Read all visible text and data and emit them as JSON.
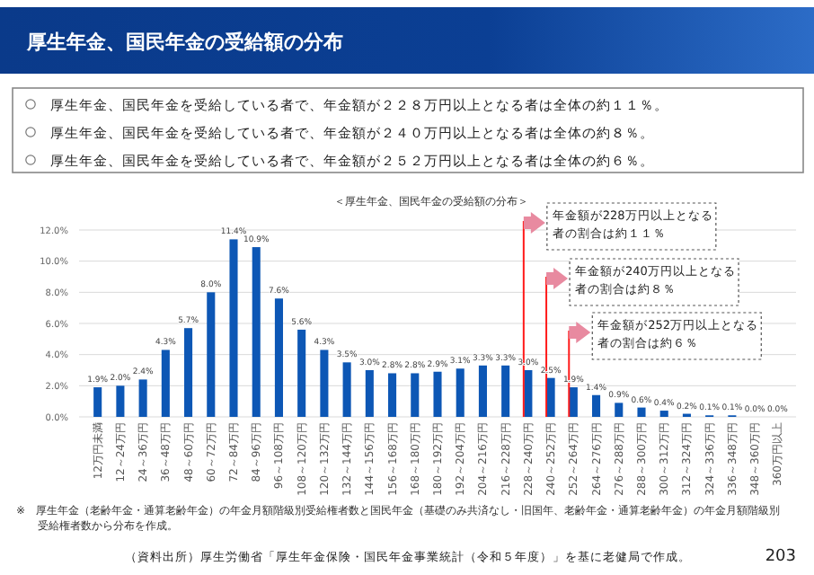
{
  "chart_data": {
    "type": "bar",
    "title": "厚生年金、国民年金の受給額の分布",
    "subtitle": "＜厚生年金、国民年金の受給額の分布＞",
    "categories": [
      "12万円未満",
      "12～24万円",
      "24～36万円",
      "36～48万円",
      "48～60万円",
      "60～72万円",
      "72～84万円",
      "84～96万円",
      "96～108万円",
      "108～120万円",
      "120～132万円",
      "132～144万円",
      "144～156万円",
      "156～168万円",
      "168～180万円",
      "180～192万円",
      "192～204万円",
      "204～216万円",
      "216～228万円",
      "228～240万円",
      "240～252万円",
      "252～264万円",
      "264～276万円",
      "276～288万円",
      "288～300万円",
      "300～312万円",
      "312～324万円",
      "324～336万円",
      "336～348万円",
      "348～360万円",
      "360万円以上"
    ],
    "values": [
      1.9,
      2.0,
      2.4,
      4.3,
      5.7,
      8.0,
      11.4,
      10.9,
      7.6,
      5.6,
      4.3,
      3.5,
      3.0,
      2.8,
      2.8,
      2.9,
      3.1,
      3.3,
      3.3,
      3.0,
      2.5,
      1.9,
      1.4,
      0.9,
      0.6,
      0.4,
      0.2,
      0.1,
      0.1,
      0.0,
      0.0
    ],
    "value_labels": [
      "1.9%",
      "2.0%",
      "2.4%",
      "4.3%",
      "5.7%",
      "8.0%",
      "11.4%",
      "10.9%",
      "7.6%",
      "5.6%",
      "4.3%",
      "3.5%",
      "3.0%",
      "2.8%",
      "2.8%",
      "2.9%",
      "3.1%",
      "3.3%",
      "3.3%",
      "3.0%",
      "2.5%",
      "1.9%",
      "1.4%",
      "0.9%",
      "0.6%",
      "0.4%",
      "0.2%",
      "0.1%",
      "0.1%",
      "0.0%",
      "0.0%"
    ],
    "color": "#0d57b5",
    "ylim": [
      0,
      12
    ],
    "yticks": [
      {
        "value": 0,
        "label": "0.0%"
      },
      {
        "value": 2,
        "label": "2.0%"
      },
      {
        "value": 4,
        "label": "4.0%"
      },
      {
        "value": 6,
        "label": "6.0%"
      },
      {
        "value": 8,
        "label": "8.0%"
      },
      {
        "value": 10,
        "label": "10.0%"
      },
      {
        "value": 12,
        "label": "12.0%"
      }
    ],
    "grid": "y",
    "ref_lines": [
      {
        "axis": "x",
        "value": "228～240万円",
        "label": "年金額が228万円以上となる者の割合は約１１％",
        "color": "#ff1a1a"
      },
      {
        "axis": "x",
        "value": "240～252万円",
        "label": "年金額が240万円以上となる者の割合は約８％",
        "color": "#ff1a1a"
      },
      {
        "axis": "x",
        "value": "252～264万円",
        "label": "年金額が252万円以上となる者の割合は約６％",
        "color": "#ff1a1a"
      }
    ],
    "annotations": [
      "厚生年金、国民年金を受給している者で、年金額が２２８万円以上となる者は全体の約１１％。",
      "厚生年金、国民年金を受給している者で、年金額が２４０万円以上となる者は全体の約８％。",
      "厚生年金、国民年金を受給している者で、年金額が２５２万円以上となる者は全体の約６％。",
      "※　厚生年金（老齢年金・通算老齢年金）の年金月額階級別受給権者数と国民年金（基礎のみ共済なし・旧国年、老齢年金・通算老齢年金）の年金月額階級別受給権者数から分布を作成。",
      "（資料出所）厚生労働省「厚生年金保険・国民年金事業統計（令和５年度）」を基に老健局で作成。",
      "203"
    ]
  }
}
